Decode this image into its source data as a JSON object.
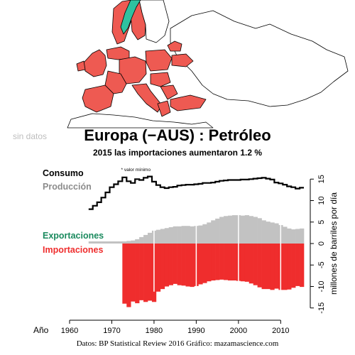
{
  "header": {
    "no_data_label": "sin datos",
    "title": "Europa (−AUS) :  Petróleo",
    "subtitle": "2015 las importaciones aumentaron 1.2 %"
  },
  "map": {
    "fill_colors": {
      "importer": "#ee5a52",
      "exporter": "#2fc2a0",
      "outline": "#000000",
      "land": "#ffffff"
    }
  },
  "credit": "Datos: BP Statistical Review 2016   Gráfico: mazamascience.com",
  "chart_data": {
    "type": "bar",
    "title": "",
    "xlabel": "Año",
    "ylabel": "millones de barriles por día",
    "xlim": [
      1960,
      2016
    ],
    "ylim": [
      -15,
      15
    ],
    "x_ticks": [
      "1960",
      "1970",
      "1980",
      "1990",
      "2000",
      "2010"
    ],
    "y_ticks": [
      "15",
      "10",
      "5",
      "0",
      "-5",
      "-10",
      "-15"
    ],
    "min_label": "* valor mínimo",
    "colors": {
      "consumption": "#000000",
      "production": "#c2c2c2",
      "exports": "#1a8a5e",
      "imports": "#ef2d2d",
      "production_label": "#8c8c8c"
    },
    "years": [
      1965,
      1966,
      1967,
      1968,
      1969,
      1970,
      1971,
      1972,
      1973,
      1974,
      1975,
      1976,
      1977,
      1978,
      1979,
      1980,
      1981,
      1982,
      1983,
      1984,
      1985,
      1986,
      1987,
      1988,
      1989,
      1990,
      1991,
      1992,
      1993,
      1994,
      1995,
      1996,
      1997,
      1998,
      1999,
      2000,
      2001,
      2002,
      2003,
      2004,
      2005,
      2006,
      2007,
      2008,
      2009,
      2010,
      2011,
      2012,
      2013,
      2014,
      2015
    ],
    "series": [
      {
        "name": "Consumo",
        "type": "line",
        "values": [
          8.0,
          8.8,
          9.6,
          10.7,
          11.9,
          13.1,
          13.8,
          14.5,
          15.4,
          14.5,
          14.1,
          15.0,
          14.8,
          15.3,
          15.6,
          14.4,
          13.6,
          13.1,
          12.9,
          13.1,
          13.2,
          13.5,
          13.6,
          13.7,
          13.7,
          13.8,
          13.9,
          14.1,
          14.1,
          14.2,
          14.4,
          14.6,
          14.7,
          14.8,
          14.8,
          14.8,
          14.9,
          14.9,
          15.0,
          15.1,
          15.2,
          15.3,
          15.1,
          14.9,
          14.2,
          14.0,
          13.7,
          13.3,
          13.1,
          12.8,
          13.0
        ]
      },
      {
        "name": "Producción",
        "type": "bar",
        "values": [
          0.5,
          0.5,
          0.5,
          0.5,
          0.5,
          0.5,
          0.5,
          0.5,
          0.5,
          0.6,
          0.7,
          1.0,
          1.5,
          2.0,
          2.5,
          3.0,
          3.2,
          3.4,
          3.6,
          3.8,
          4.0,
          4.0,
          4.1,
          4.1,
          4.0,
          4.1,
          4.2,
          4.5,
          4.9,
          5.4,
          5.8,
          6.2,
          6.4,
          6.5,
          6.6,
          6.6,
          6.5,
          6.6,
          6.4,
          6.2,
          5.9,
          5.4,
          5.1,
          4.9,
          4.7,
          4.3,
          3.9,
          3.5,
          3.3,
          3.4,
          3.5
        ]
      },
      {
        "name": "Exportaciones",
        "type": "bar",
        "values": [
          0,
          0,
          0,
          0,
          0,
          0,
          0,
          0,
          0,
          0,
          0,
          0,
          0,
          0,
          0,
          0,
          0,
          0,
          0,
          0,
          0,
          0,
          0,
          0,
          0,
          0,
          0,
          0,
          0,
          0,
          0,
          0,
          0,
          0,
          0,
          0,
          0,
          0,
          0,
          0,
          0,
          0,
          0,
          0,
          0,
          0,
          0,
          0,
          0,
          0,
          0
        ]
      },
      {
        "name": "Importaciones",
        "type": "bar",
        "values": [
          0,
          0,
          0,
          0,
          0,
          0,
          0,
          0,
          -14.0,
          -14.8,
          -13.5,
          -13.9,
          -13.2,
          -13.6,
          -13.3,
          -13.6,
          -11.2,
          -10.6,
          -10.0,
          -9.7,
          -9.4,
          -9.7,
          -9.8,
          -10.0,
          -10.1,
          -9.9,
          -9.5,
          -9.2,
          -8.8,
          -8.6,
          -8.5,
          -8.4,
          -8.5,
          -8.6,
          -8.6,
          -8.7,
          -8.8,
          -8.9,
          -9.3,
          -9.7,
          -10.2,
          -10.6,
          -10.6,
          -10.8,
          -10.5,
          -10.8,
          -10.8,
          -10.7,
          -10.3,
          -9.9,
          -10.1
        ]
      }
    ]
  }
}
